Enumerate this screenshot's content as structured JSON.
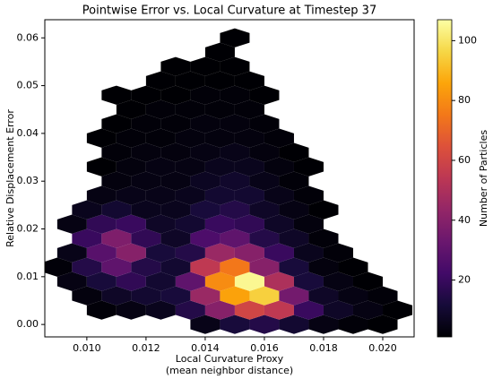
{
  "chart_data": {
    "type": "hexbin",
    "title": "Pointwise Error vs. Local Curvature at Timestep 37",
    "xlabel": [
      "Local Curvature Proxy",
      "(mean neighbor distance)"
    ],
    "ylabel": "Relative Displacement Error",
    "colorbar_label": "Number of Particles",
    "colormap": "inferno",
    "x": [
      0.014,
      0.015,
      0.016,
      0.017,
      0.018,
      0.019,
      0.02,
      0.0105,
      0.0115,
      0.0125,
      0.0135,
      0.0145,
      0.0155,
      0.0165,
      0.0175,
      0.0185,
      0.0195,
      0.0205,
      0.01,
      0.011,
      0.012,
      0.013,
      0.014,
      0.015,
      0.016,
      0.017,
      0.018,
      0.019,
      0.02,
      0.0095,
      0.0105,
      0.0115,
      0.0125,
      0.0135,
      0.0145,
      0.0155,
      0.0165,
      0.0175,
      0.0185,
      0.0195,
      0.009,
      0.01,
      0.011,
      0.012,
      0.013,
      0.014,
      0.015,
      0.016,
      0.017,
      0.018,
      0.019,
      0.0095,
      0.0105,
      0.0115,
      0.0125,
      0.0135,
      0.0145,
      0.0155,
      0.0165,
      0.0175,
      0.0185,
      0.01,
      0.011,
      0.012,
      0.013,
      0.014,
      0.015,
      0.016,
      0.017,
      0.018,
      0.0095,
      0.0105,
      0.0115,
      0.0125,
      0.0135,
      0.0145,
      0.0155,
      0.0165,
      0.0175,
      0.01,
      0.011,
      0.012,
      0.013,
      0.014,
      0.015,
      0.016,
      0.017,
      0.018,
      0.0105,
      0.0115,
      0.0125,
      0.0135,
      0.0145,
      0.0155,
      0.0165,
      0.0175,
      0.011,
      0.012,
      0.013,
      0.014,
      0.015,
      0.016,
      0.017,
      0.0105,
      0.0115,
      0.0125,
      0.0135,
      0.0145,
      0.0155,
      0.0165,
      0.0175,
      0.011,
      0.012,
      0.013,
      0.014,
      0.015,
      0.016,
      0.017,
      0.0105,
      0.0115,
      0.0125,
      0.0135,
      0.0145,
      0.0155,
      0.0165,
      0.011,
      0.012,
      0.013,
      0.014,
      0.015,
      0.016,
      0.0115,
      0.0125,
      0.0135,
      0.0145,
      0.0155,
      0.011,
      0.012,
      0.013,
      0.014,
      0.015,
      0.016,
      0.0125,
      0.0135,
      0.0145,
      0.0155,
      0.013,
      0.014,
      0.015,
      0.0145,
      0.015
    ],
    "y": [
      0,
      0,
      0,
      0,
      0,
      0,
      0,
      0.003,
      0.003,
      0.003,
      0.003,
      0.003,
      0.003,
      0.003,
      0.003,
      0.003,
      0.003,
      0.003,
      0.006,
      0.006,
      0.006,
      0.006,
      0.006,
      0.006,
      0.006,
      0.006,
      0.006,
      0.006,
      0.006,
      0.009,
      0.009,
      0.009,
      0.009,
      0.009,
      0.009,
      0.009,
      0.009,
      0.009,
      0.009,
      0.009,
      0.012,
      0.012,
      0.012,
      0.012,
      0.012,
      0.012,
      0.012,
      0.012,
      0.012,
      0.012,
      0.012,
      0.015,
      0.015,
      0.015,
      0.015,
      0.015,
      0.015,
      0.015,
      0.015,
      0.015,
      0.015,
      0.018,
      0.018,
      0.018,
      0.018,
      0.018,
      0.018,
      0.018,
      0.018,
      0.018,
      0.021,
      0.021,
      0.021,
      0.021,
      0.021,
      0.021,
      0.021,
      0.021,
      0.021,
      0.024,
      0.024,
      0.024,
      0.024,
      0.024,
      0.024,
      0.024,
      0.024,
      0.024,
      0.027,
      0.027,
      0.027,
      0.027,
      0.027,
      0.027,
      0.027,
      0.027,
      0.03,
      0.03,
      0.03,
      0.03,
      0.03,
      0.03,
      0.03,
      0.033,
      0.033,
      0.033,
      0.033,
      0.033,
      0.033,
      0.033,
      0.033,
      0.036,
      0.036,
      0.036,
      0.036,
      0.036,
      0.036,
      0.036,
      0.039,
      0.039,
      0.039,
      0.039,
      0.039,
      0.039,
      0.039,
      0.042,
      0.042,
      0.042,
      0.042,
      0.042,
      0.042,
      0.045,
      0.045,
      0.045,
      0.045,
      0.045,
      0.048,
      0.048,
      0.048,
      0.048,
      0.048,
      0.048,
      0.051,
      0.051,
      0.051,
      0.051,
      0.054,
      0.054,
      0.054,
      0.057,
      0.06
    ],
    "values": [
      5,
      12,
      15,
      10,
      4,
      2,
      1,
      2,
      4,
      6,
      15,
      40,
      60,
      55,
      20,
      8,
      4,
      1,
      3,
      8,
      10,
      12,
      45,
      85,
      95,
      35,
      8,
      4,
      2,
      4,
      12,
      18,
      10,
      30,
      80,
      105,
      50,
      12,
      4,
      1,
      2,
      15,
      30,
      15,
      10,
      55,
      75,
      40,
      12,
      3,
      1,
      5,
      28,
      40,
      12,
      15,
      45,
      40,
      20,
      6,
      2,
      20,
      38,
      18,
      8,
      25,
      30,
      15,
      8,
      2,
      4,
      18,
      20,
      8,
      10,
      20,
      18,
      8,
      3,
      6,
      10,
      6,
      6,
      12,
      15,
      8,
      4,
      1,
      4,
      5,
      5,
      6,
      10,
      10,
      5,
      2,
      3,
      4,
      4,
      7,
      9,
      5,
      2,
      1,
      3,
      4,
      4,
      6,
      6,
      3,
      1,
      2,
      3,
      3,
      4,
      5,
      3,
      1,
      1,
      2,
      2,
      3,
      3,
      3,
      2,
      1,
      2,
      2,
      3,
      3,
      2,
      1,
      2,
      2,
      2,
      2,
      1,
      1,
      1,
      2,
      2,
      1,
      1,
      1,
      1,
      1,
      1,
      1,
      1,
      1,
      1
    ],
    "xlim": [
      0.00858,
      0.02106
    ],
    "ylim": [
      -0.0026,
      0.0638
    ],
    "clim": [
      1,
      107
    ],
    "xticks": [
      {
        "value": 0.01,
        "label": "0.010"
      },
      {
        "value": 0.012,
        "label": "0.012"
      },
      {
        "value": 0.014,
        "label": "0.014"
      },
      {
        "value": 0.016,
        "label": "0.016"
      },
      {
        "value": 0.018,
        "label": "0.018"
      },
      {
        "value": 0.02,
        "label": "0.020"
      }
    ],
    "yticks": [
      {
        "value": 0,
        "label": "0.00"
      },
      {
        "value": 0.01,
        "label": "0.01"
      },
      {
        "value": 0.02,
        "label": "0.02"
      },
      {
        "value": 0.03,
        "label": "0.03"
      },
      {
        "value": 0.04,
        "label": "0.04"
      },
      {
        "value": 0.05,
        "label": "0.05"
      },
      {
        "value": 0.06,
        "label": "0.06"
      }
    ],
    "cticks": [
      20,
      40,
      60,
      80,
      100
    ],
    "hex_width": 0.001,
    "hex_row_spacing": 0.003
  }
}
